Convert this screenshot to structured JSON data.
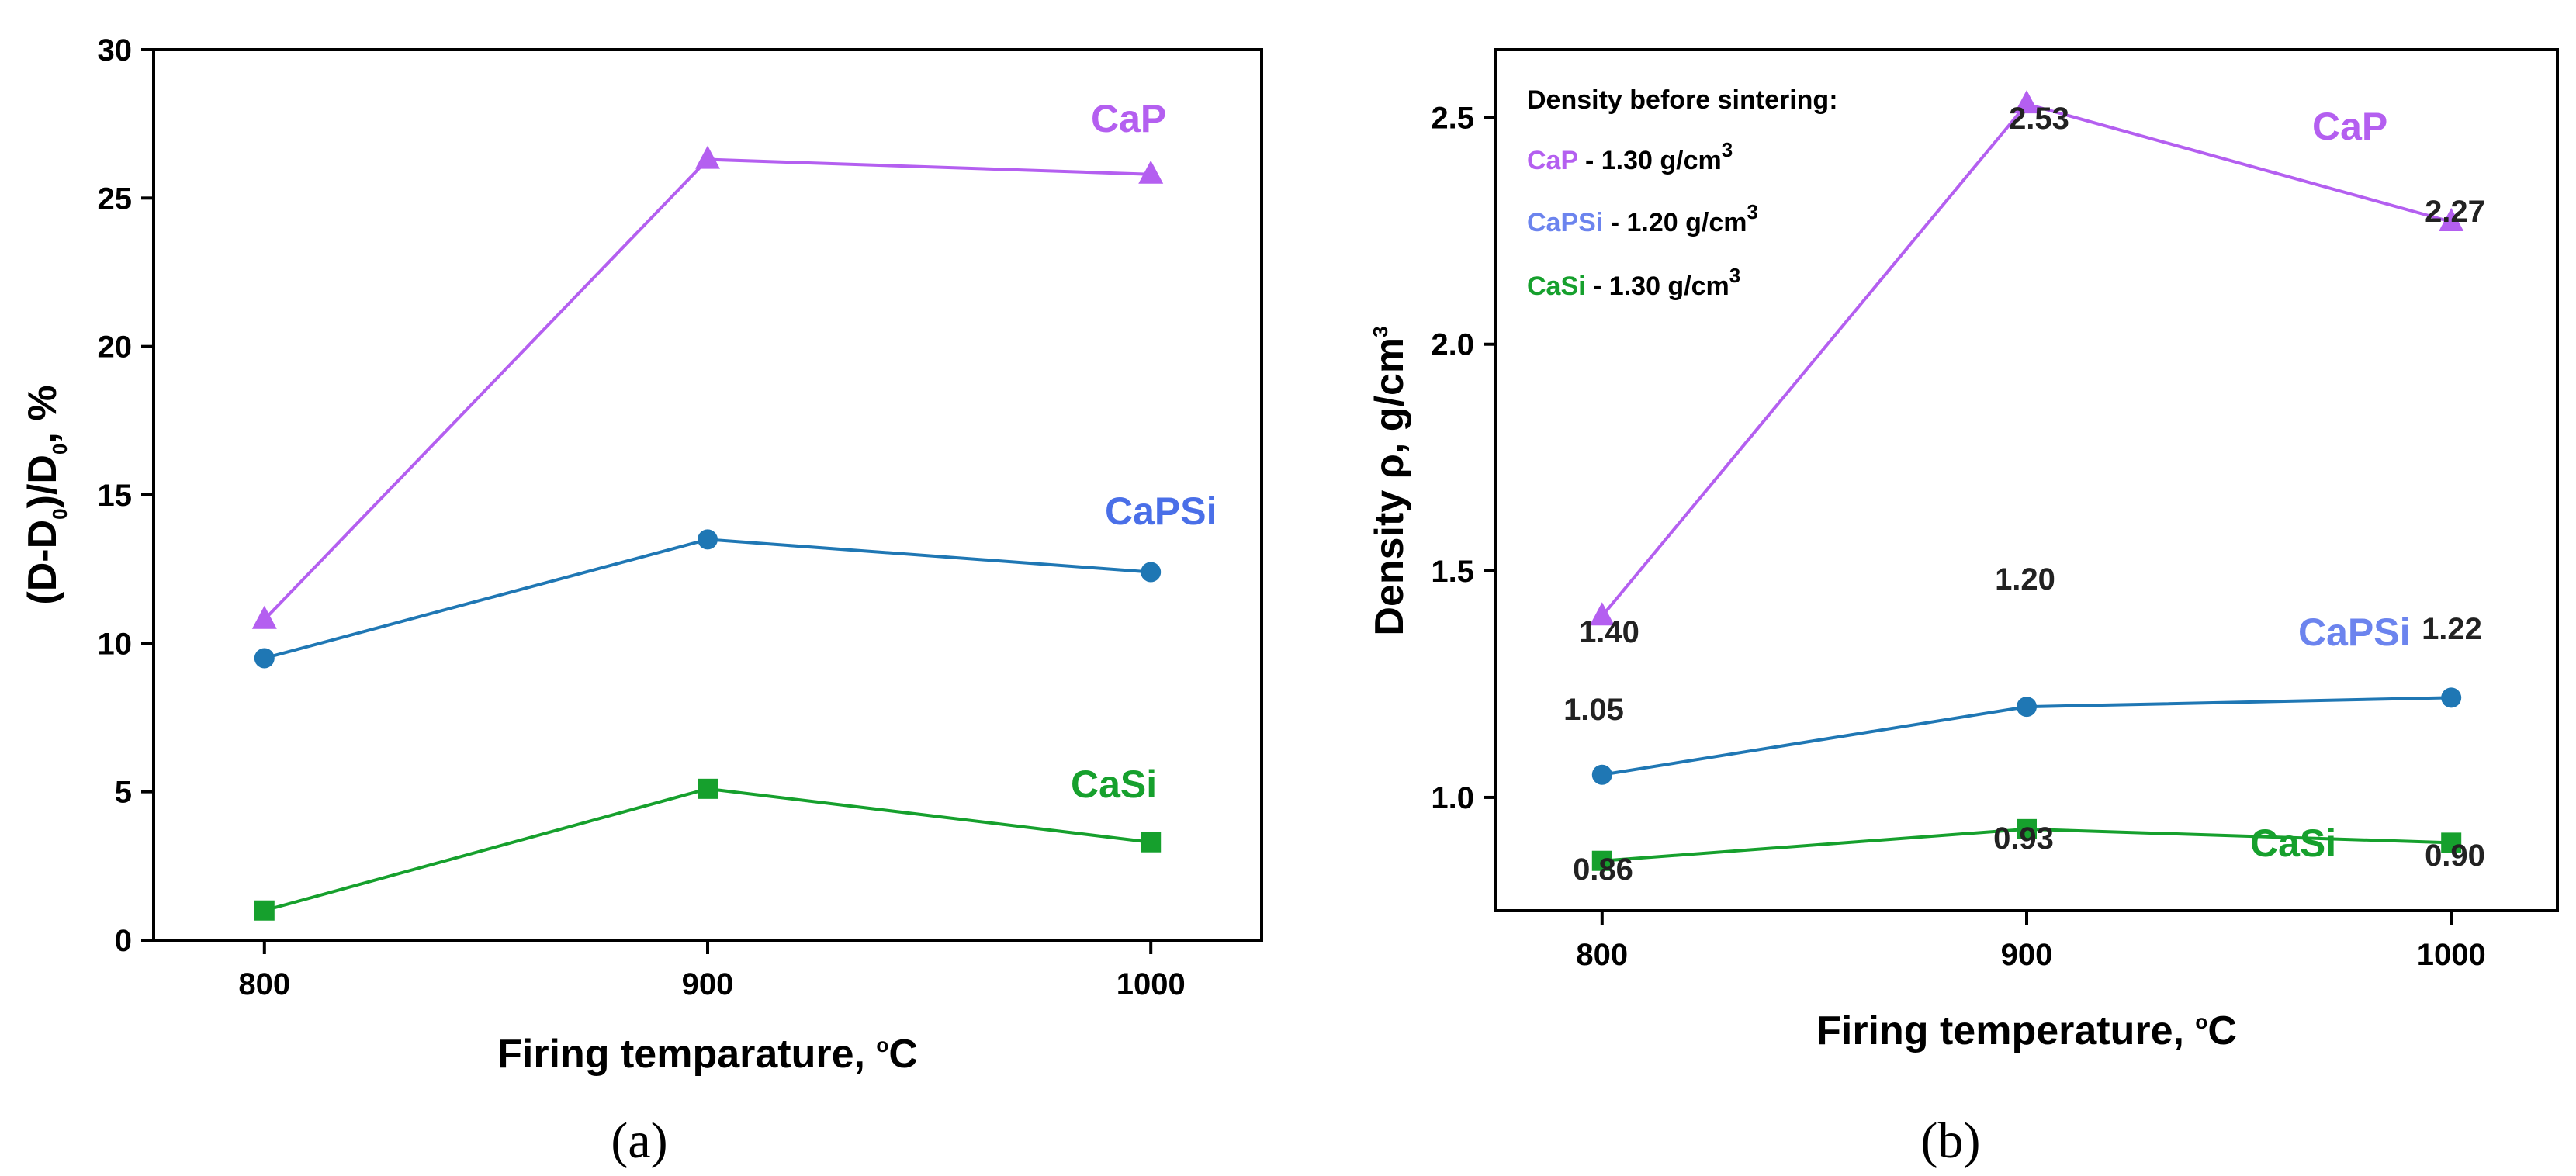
{
  "chart_data": [
    {
      "type": "line",
      "panel_label": "(a)",
      "xlabel": "Firing temparature, ",
      "xlabel_unit_sup": "o",
      "xlabel_unit": "C",
      "ylabel_parts": {
        "a": "(D-D",
        "a_sub": "0",
        "b": ")/D",
        "b_sub": "0",
        "c": ", %"
      },
      "x": [
        800,
        900,
        1000
      ],
      "xticks": [
        "800",
        "900",
        "1000"
      ],
      "xlim": [
        775,
        1025
      ],
      "ylim": [
        0,
        30
      ],
      "yticks": [
        "0",
        "5",
        "10",
        "15",
        "20",
        "25",
        "30"
      ],
      "yticks_values": [
        0,
        5,
        10,
        15,
        20,
        25,
        30
      ],
      "grid": false,
      "series": [
        {
          "name": "CaP",
          "color": "#b45ff0",
          "marker": "triangle",
          "values": [
            10.8,
            26.3,
            25.8
          ]
        },
        {
          "name": "CaPSi",
          "color": "#1f77b4",
          "label_color": "#4a6fe8",
          "marker": "circle",
          "values": [
            9.5,
            13.5,
            12.4
          ]
        },
        {
          "name": "CaSi",
          "color": "#16a02d",
          "marker": "square",
          "values": [
            1.0,
            5.1,
            3.3
          ]
        }
      ]
    },
    {
      "type": "line",
      "panel_label": "(b)",
      "xlabel": "Firing temperature, ",
      "xlabel_unit_sup": "o",
      "xlabel_unit": "C",
      "ylabel": "Density ρ, g/cm",
      "ylabel_sup": "3",
      "x": [
        800,
        900,
        1000
      ],
      "xticks": [
        "800",
        "900",
        "1000"
      ],
      "xlim": [
        775,
        1025
      ],
      "ylim": [
        0.75,
        2.65
      ],
      "yticks": [
        "1.0",
        "1.5",
        "2.0",
        "2.5"
      ],
      "yticks_values": [
        1.0,
        1.5,
        2.0,
        2.5
      ],
      "grid": false,
      "legend_title": "Density before sintering:",
      "legend_entries": [
        {
          "name": "CaP",
          "text": " - 1.30 g/cm",
          "sup": "3",
          "color": "#b45ff0"
        },
        {
          "name": "CaPSi",
          "text": " - 1.20 g/cm",
          "sup": "3",
          "color": "#6c84ee"
        },
        {
          "name": "CaSi",
          "text": " - 1.30 g/cm",
          "sup": "3",
          "color": "#16a02d"
        }
      ],
      "series": [
        {
          "name": "CaP",
          "color": "#b45ff0",
          "marker": "triangle",
          "values": [
            1.4,
            2.53,
            2.27
          ],
          "data_labels": [
            "1.40",
            "2.53",
            "2.27"
          ]
        },
        {
          "name": "CaPSi",
          "color": "#1f77b4",
          "label_color": "#6c84ee",
          "marker": "circle",
          "values": [
            1.05,
            1.2,
            1.22
          ],
          "data_labels": [
            "1.05",
            "1.20",
            "1.22"
          ]
        },
        {
          "name": "CaSi",
          "color": "#16a02d",
          "marker": "square",
          "values": [
            0.86,
            0.93,
            0.9
          ],
          "data_labels": [
            "0.86",
            "0.93",
            "0.90"
          ]
        }
      ]
    }
  ]
}
